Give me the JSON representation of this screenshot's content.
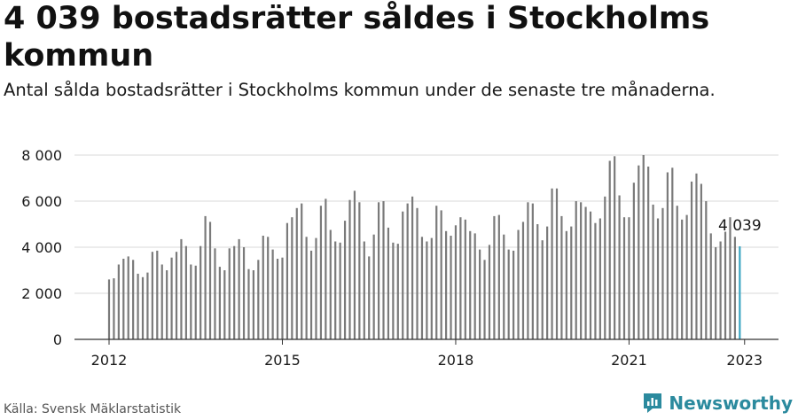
{
  "header": {
    "title": "4 039 bostadsrätter såldes i Stockholms kommun",
    "subtitle": "Antal sålda bostadsrätter i Stockholms kommun under de senaste tre månaderna."
  },
  "footer": {
    "source": "Källa: Svensk Mäklarstatistik",
    "brand": "Newsworthy",
    "brand_icon": "newsworthy-logo-icon"
  },
  "colors": {
    "bar": "#7a7a7a",
    "highlight": "#3aa5c2",
    "grid": "#d9d9d9",
    "axis": "#333333",
    "brand": "#2b8a9e"
  },
  "chart_data": {
    "type": "bar",
    "x_start": "2012-01",
    "x_unit": "month",
    "x_ticks": [
      "2012",
      "2015",
      "2018",
      "2021",
      "2023"
    ],
    "y_ticks": [
      "0",
      "2 000",
      "4 000",
      "6 000",
      "8 000"
    ],
    "ylim": [
      0,
      8000
    ],
    "grid": true,
    "annotation": {
      "label": "4 039",
      "value": 4039
    },
    "values": [
      2600,
      2650,
      3250,
      3500,
      3600,
      3450,
      2850,
      2700,
      2900,
      3800,
      3850,
      3250,
      3000,
      3550,
      3800,
      4350,
      4050,
      3250,
      3200,
      4050,
      5350,
      5100,
      3950,
      3150,
      3000,
      3950,
      4050,
      4350,
      4000,
      3050,
      3000,
      3450,
      4500,
      4450,
      3900,
      3500,
      3550,
      5050,
      5300,
      5700,
      5900,
      4450,
      3850,
      4400,
      5800,
      6100,
      4750,
      4250,
      4200,
      5150,
      6050,
      6450,
      5950,
      4250,
      3600,
      4550,
      5950,
      6000,
      4850,
      4200,
      4150,
      5550,
      5900,
      6200,
      5700,
      4450,
      4250,
      4400,
      5800,
      5600,
      4700,
      4500,
      4950,
      5300,
      5200,
      4700,
      4600,
      3900,
      3450,
      4100,
      5350,
      5400,
      4550,
      3900,
      3850,
      4750,
      5100,
      5950,
      5900,
      5000,
      4300,
      4900,
      6550,
      6550,
      5350,
      4700,
      4900,
      6000,
      5950,
      5750,
      5550,
      5050,
      5250,
      6200,
      7750,
      7950,
      6250,
      5300,
      5300,
      6800,
      7550,
      8000,
      7500,
      5850,
      5250,
      5700,
      7250,
      7450,
      5800,
      5200,
      5400,
      6850,
      7200,
      6750,
      6000,
      4600,
      4000,
      4250,
      4750,
      5300,
      4450,
      4039
    ]
  }
}
